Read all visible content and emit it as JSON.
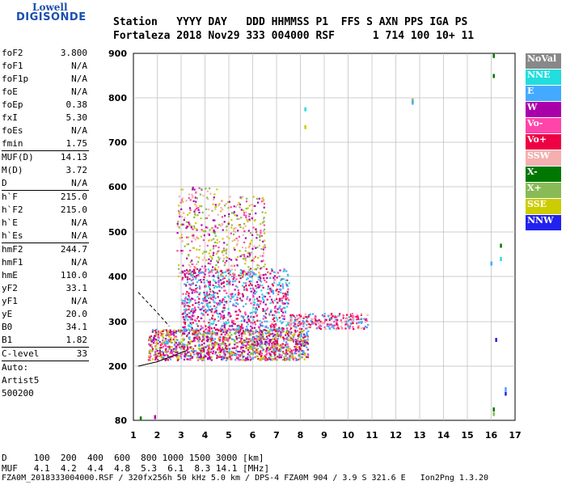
{
  "logo": {
    "line1": "Lowell",
    "line2": "DIGISONDE"
  },
  "header": {
    "line1": "Station   YYYY DAY   DDD HHMMSS P1  FFS S AXN PPS IGA PS",
    "line2": "Fortaleza 2018 Nov29 333 004000 RSF      1 714 100 10+ 11"
  },
  "params": {
    "group1": [
      {
        "k": "foF2",
        "v": "3.800"
      },
      {
        "k": "foF1",
        "v": "N/A"
      },
      {
        "k": "foF1p",
        "v": "N/A"
      },
      {
        "k": "foE",
        "v": "N/A"
      },
      {
        "k": "foEp",
        "v": "0.38"
      },
      {
        "k": "fxI",
        "v": "5.30"
      },
      {
        "k": "foEs",
        "v": "N/A"
      },
      {
        "k": "fmin",
        "v": "1.75"
      }
    ],
    "group2": [
      {
        "k": "MUF(D)",
        "v": "14.13"
      },
      {
        "k": "M(D)",
        "v": "3.72"
      },
      {
        "k": "D",
        "v": "N/A"
      }
    ],
    "group3": [
      {
        "k": "h`F",
        "v": "215.0"
      },
      {
        "k": "h`F2",
        "v": "215.0"
      },
      {
        "k": "h`E",
        "v": "N/A"
      },
      {
        "k": "h`Es",
        "v": "N/A"
      }
    ],
    "group4": [
      {
        "k": "hmF2",
        "v": "244.7"
      },
      {
        "k": "hmF1",
        "v": "N/A"
      },
      {
        "k": "hmE",
        "v": "110.0"
      },
      {
        "k": "yF2",
        "v": "33.1"
      },
      {
        "k": "yF1",
        "v": "N/A"
      },
      {
        "k": "yE",
        "v": "20.0"
      },
      {
        "k": "B0",
        "v": "34.1"
      },
      {
        "k": "B1",
        "v": "1.82"
      }
    ],
    "group5": [
      {
        "k": "C-level",
        "v": "33"
      }
    ],
    "auto": "Auto:",
    "artist": "Artist5",
    "artist_ver": "500200"
  },
  "legend": [
    {
      "label": "NoVal",
      "color": "#888888"
    },
    {
      "label": "NNE",
      "color": "#22dddd"
    },
    {
      "label": "E",
      "color": "#44aaff"
    },
    {
      "label": "W",
      "color": "#aa00aa"
    },
    {
      "label": "Vo-",
      "color": "#ff44aa"
    },
    {
      "label": "Vo+",
      "color": "#ee0044"
    },
    {
      "label": "SSW",
      "color": "#f4b0b0"
    },
    {
      "label": "X-",
      "color": "#007700"
    },
    {
      "label": "X+",
      "color": "#88bb55"
    },
    {
      "label": "SSE",
      "color": "#cccc00"
    },
    {
      "label": "NNW",
      "color": "#2222ee"
    }
  ],
  "footer": {
    "d_row": "D     100  200  400  600  800 1000 1500 3000 [km]",
    "muf_row": "MUF   4.1  4.2  4.4  4.8  5.3  6.1  8.3 14.1 [MHz]",
    "file_row": "FZA0M_2018333004000.RSF / 320fx256h 50 kHz 5.0 km / DPS-4 FZA0M 904 / 3.9 S 321.6 E   Ion2Png 1.3.20"
  },
  "chart_data": {
    "type": "scatter",
    "title": "",
    "xlabel": "",
    "ylabel": "",
    "xlim": [
      1,
      17
    ],
    "ylim": [
      80,
      900
    ],
    "xticks": [
      1,
      2,
      3,
      4,
      5,
      6,
      7,
      8,
      9,
      10,
      11,
      12,
      13,
      14,
      15,
      16,
      17
    ],
    "yticks": [
      80,
      200,
      300,
      400,
      500,
      600,
      700,
      800,
      900
    ],
    "grid": true,
    "legend_placement": "right",
    "dashed_trace": {
      "x": [
        1.2,
        2.0,
        2.5
      ],
      "y": [
        365,
        320,
        290
      ]
    },
    "solid_trace": {
      "x": [
        1.2,
        2.0,
        2.5,
        3.2
      ],
      "y": [
        200,
        210,
        220,
        235
      ]
    },
    "echo_clusters": [
      {
        "name": "main-F",
        "x": [
          1.6,
          8.3
        ],
        "y": [
          215,
          285
        ],
        "color_mix": [
          "Vo+",
          "Vo-",
          "SSE",
          "X+",
          "E",
          "W"
        ]
      },
      {
        "name": "upper-F",
        "x": [
          3.0,
          7.5
        ],
        "y": [
          280,
          420
        ],
        "color_mix": [
          "Vo+",
          "Vo-",
          "W",
          "E",
          "NNE"
        ]
      },
      {
        "name": "high-spread",
        "x": [
          2.8,
          6.5
        ],
        "y": [
          400,
          600
        ],
        "color_mix": [
          "W",
          "SSE",
          "X+",
          "Vo-",
          "SSW"
        ]
      },
      {
        "name": "tail",
        "x": [
          7.5,
          10.8
        ],
        "y": [
          285,
          320
        ],
        "color_mix": [
          "SSW",
          "Vo-",
          "Vo+",
          "E"
        ]
      }
    ],
    "isolated_points": [
      {
        "x": 12.7,
        "y": 795,
        "dir": "X+"
      },
      {
        "x": 12.7,
        "y": 790,
        "dir": "E"
      },
      {
        "x": 8.2,
        "y": 775,
        "dir": "NNE"
      },
      {
        "x": 8.2,
        "y": 735,
        "dir": "SSE"
      },
      {
        "x": 16.1,
        "y": 895,
        "dir": "X-"
      },
      {
        "x": 16.1,
        "y": 850,
        "dir": "X-"
      },
      {
        "x": 16.4,
        "y": 470,
        "dir": "X-"
      },
      {
        "x": 16.4,
        "y": 440,
        "dir": "NNE"
      },
      {
        "x": 16.0,
        "y": 430,
        "dir": "E"
      },
      {
        "x": 16.2,
        "y": 260,
        "dir": "NNW"
      },
      {
        "x": 16.6,
        "y": 150,
        "dir": "E"
      },
      {
        "x": 16.6,
        "y": 140,
        "dir": "NNW"
      },
      {
        "x": 16.1,
        "y": 105,
        "dir": "X-"
      },
      {
        "x": 16.1,
        "y": 95,
        "dir": "X+"
      },
      {
        "x": 1.3,
        "y": 85,
        "dir": "X-"
      },
      {
        "x": 1.9,
        "y": 88,
        "dir": "W"
      }
    ]
  }
}
